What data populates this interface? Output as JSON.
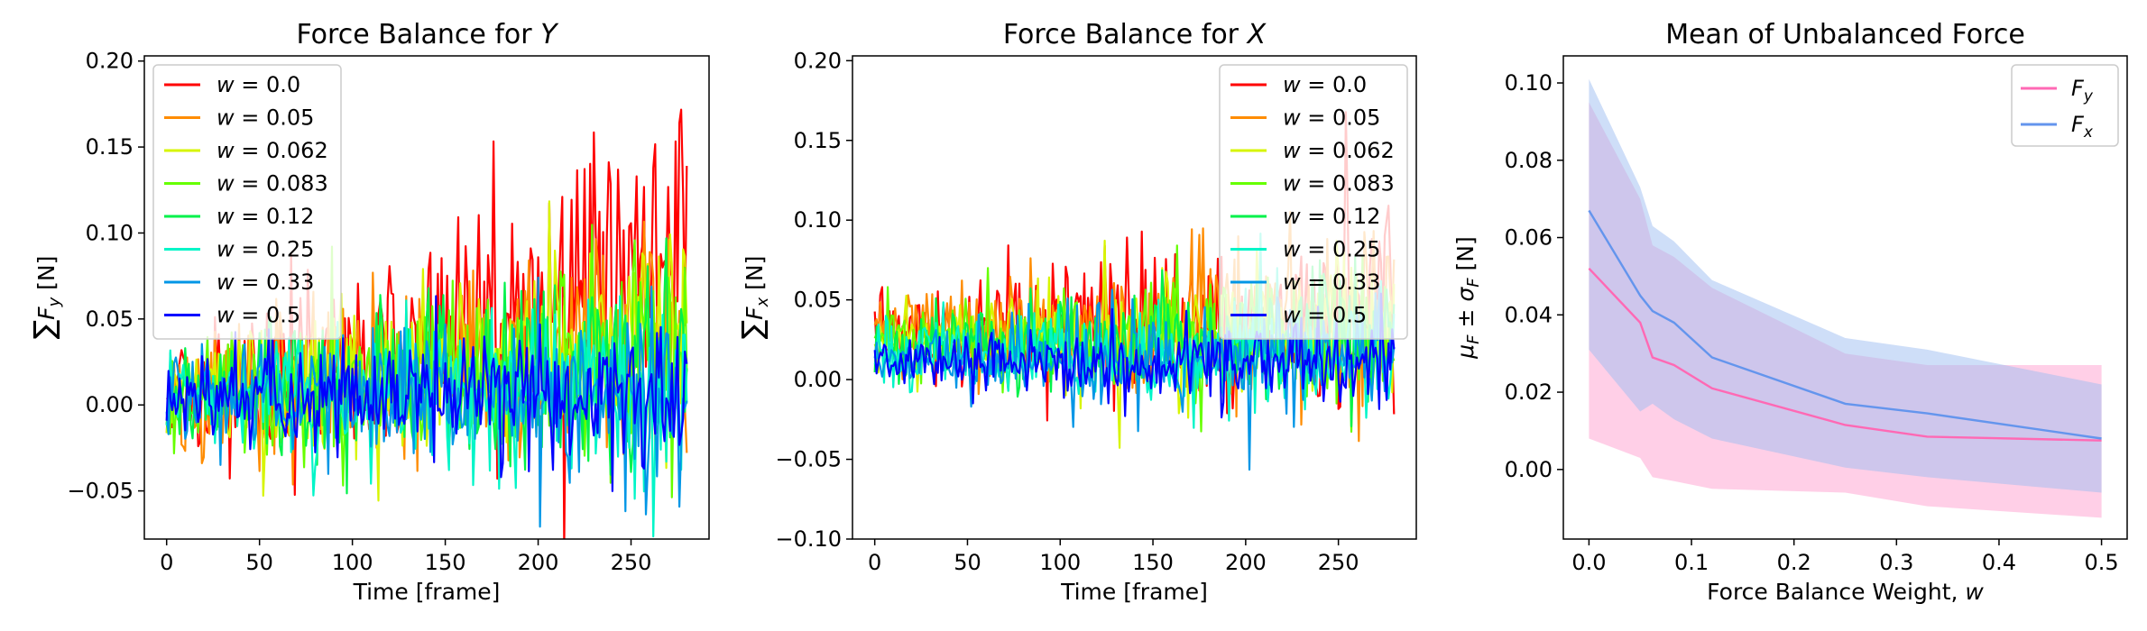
{
  "chart_data": [
    {
      "type": "line",
      "title_plain": "Force Balance for ",
      "title_italic": "Y",
      "xlabel": "Time [frame]",
      "ylabel": "∑F_y [N]",
      "xlim": [
        -12,
        292
      ],
      "ylim": [
        -0.078,
        0.203
      ],
      "xticks": [
        0,
        50,
        100,
        150,
        200,
        250
      ],
      "yticks": [
        -0.05,
        0.0,
        0.05,
        0.1,
        0.15,
        0.2
      ],
      "ytick_labels": [
        "−0.05",
        "0.00",
        "0.05",
        "0.10",
        "0.15",
        "0.20"
      ],
      "legend_position": "upper-left",
      "grid": false,
      "frames": 281,
      "series": [
        {
          "name": "w = 0.0",
          "w": "0.0",
          "color": "#ff0000",
          "mean_start": 0.005,
          "mean_end": 0.085,
          "noise_start": 0.015,
          "noise_end": 0.045
        },
        {
          "name": "w = 0.05",
          "w": "0.05",
          "color": "#ff8c00",
          "mean_start": 0.004,
          "mean_end": 0.045,
          "noise_start": 0.015,
          "noise_end": 0.035
        },
        {
          "name": "w = 0.062",
          "w": "0.062",
          "color": "#d7f500",
          "mean_start": 0.005,
          "mean_end": 0.04,
          "noise_start": 0.015,
          "noise_end": 0.032
        },
        {
          "name": "w = 0.083",
          "w": "0.083",
          "color": "#66ff00",
          "mean_start": 0.004,
          "mean_end": 0.034,
          "noise_start": 0.014,
          "noise_end": 0.03
        },
        {
          "name": "w = 0.12",
          "w": "0.12",
          "color": "#00f24a",
          "mean_start": 0.003,
          "mean_end": 0.025,
          "noise_start": 0.014,
          "noise_end": 0.03
        },
        {
          "name": "w = 0.25",
          "w": "0.25",
          "color": "#00f5c8",
          "mean_start": 0.003,
          "mean_end": 0.012,
          "noise_start": 0.013,
          "noise_end": 0.028
        },
        {
          "name": "w = 0.33",
          "w": "0.33",
          "color": "#0096e6",
          "mean_start": 0.003,
          "mean_end": 0.01,
          "noise_start": 0.012,
          "noise_end": 0.025
        },
        {
          "name": "w = 0.5",
          "w": "0.5",
          "color": "#0000ff",
          "mean_start": 0.002,
          "mean_end": 0.008,
          "noise_start": 0.01,
          "noise_end": 0.022
        }
      ]
    },
    {
      "type": "line",
      "title_plain": "Force Balance for ",
      "title_italic": "X",
      "xlabel": "Time [frame]",
      "ylabel": "∑F_x [N]",
      "xlim": [
        -12,
        292
      ],
      "ylim": [
        -0.1,
        0.203
      ],
      "xticks": [
        0,
        50,
        100,
        150,
        200,
        250
      ],
      "yticks": [
        -0.1,
        -0.05,
        0.0,
        0.05,
        0.1,
        0.15,
        0.2
      ],
      "ytick_labels": [
        "−0.10",
        "−0.05",
        "0.00",
        "0.05",
        "0.10",
        "0.15",
        "0.20"
      ],
      "legend_position": "upper-right",
      "grid": false,
      "frames": 281,
      "series": [
        {
          "name": "w = 0.0",
          "w": "0.0",
          "color": "#ff0000",
          "mean_start": 0.03,
          "mean_end": 0.05,
          "noise_start": 0.01,
          "noise_end": 0.035
        },
        {
          "name": "w = 0.05",
          "w": "0.05",
          "color": "#ff8c00",
          "mean_start": 0.028,
          "mean_end": 0.04,
          "noise_start": 0.01,
          "noise_end": 0.03
        },
        {
          "name": "w = 0.062",
          "w": "0.062",
          "color": "#d7f500",
          "mean_start": 0.026,
          "mean_end": 0.035,
          "noise_start": 0.01,
          "noise_end": 0.025
        },
        {
          "name": "w = 0.083",
          "w": "0.083",
          "color": "#66ff00",
          "mean_start": 0.024,
          "mean_end": 0.03,
          "noise_start": 0.01,
          "noise_end": 0.022
        },
        {
          "name": "w = 0.12",
          "w": "0.12",
          "color": "#00f24a",
          "mean_start": 0.02,
          "mean_end": 0.025,
          "noise_start": 0.01,
          "noise_end": 0.022
        },
        {
          "name": "w = 0.25",
          "w": "0.25",
          "color": "#00f5c8",
          "mean_start": 0.015,
          "mean_end": 0.018,
          "noise_start": 0.01,
          "noise_end": 0.02
        },
        {
          "name": "w = 0.33",
          "w": "0.33",
          "color": "#0096e6",
          "mean_start": 0.012,
          "mean_end": 0.015,
          "noise_start": 0.009,
          "noise_end": 0.018
        },
        {
          "name": "w = 0.5",
          "w": "0.5",
          "color": "#0000ff",
          "mean_start": 0.01,
          "mean_end": 0.012,
          "noise_start": 0.007,
          "noise_end": 0.013
        }
      ]
    },
    {
      "type": "line",
      "title": "Mean of Unbalanced Force",
      "xlabel_plain": "Force Balance Weight, ",
      "xlabel_italic": "w",
      "ylabel": "μ_F ± σ_F [N]",
      "xlim": [
        -0.025,
        0.525
      ],
      "ylim": [
        -0.018,
        0.107
      ],
      "xticks": [
        0.0,
        0.1,
        0.2,
        0.3,
        0.4,
        0.5
      ],
      "yticks": [
        0.0,
        0.02,
        0.04,
        0.06,
        0.08,
        0.1
      ],
      "legend_position": "upper-right",
      "grid": false,
      "x": [
        0.0,
        0.05,
        0.062,
        0.083,
        0.12,
        0.25,
        0.33,
        0.5
      ],
      "series": [
        {
          "name": "F_y",
          "color": "#ff69b4",
          "fill": "#ff9fd0",
          "mean": [
            0.052,
            0.038,
            0.029,
            0.027,
            0.021,
            0.0115,
            0.0085,
            0.0075
          ],
          "lower": [
            0.008,
            0.003,
            -0.002,
            -0.003,
            -0.005,
            -0.006,
            -0.0095,
            -0.0125
          ],
          "upper": [
            0.095,
            0.07,
            0.058,
            0.055,
            0.047,
            0.03,
            0.027,
            0.027
          ]
        },
        {
          "name": "F_x",
          "color": "#6495ed",
          "fill": "#9ebdf2",
          "mean": [
            0.067,
            0.045,
            0.041,
            0.038,
            0.029,
            0.017,
            0.0145,
            0.008
          ],
          "lower": [
            0.031,
            0.015,
            0.017,
            0.013,
            0.008,
            0.0005,
            -0.002,
            -0.006
          ],
          "upper": [
            0.101,
            0.073,
            0.063,
            0.059,
            0.049,
            0.034,
            0.031,
            0.022
          ]
        }
      ]
    }
  ]
}
